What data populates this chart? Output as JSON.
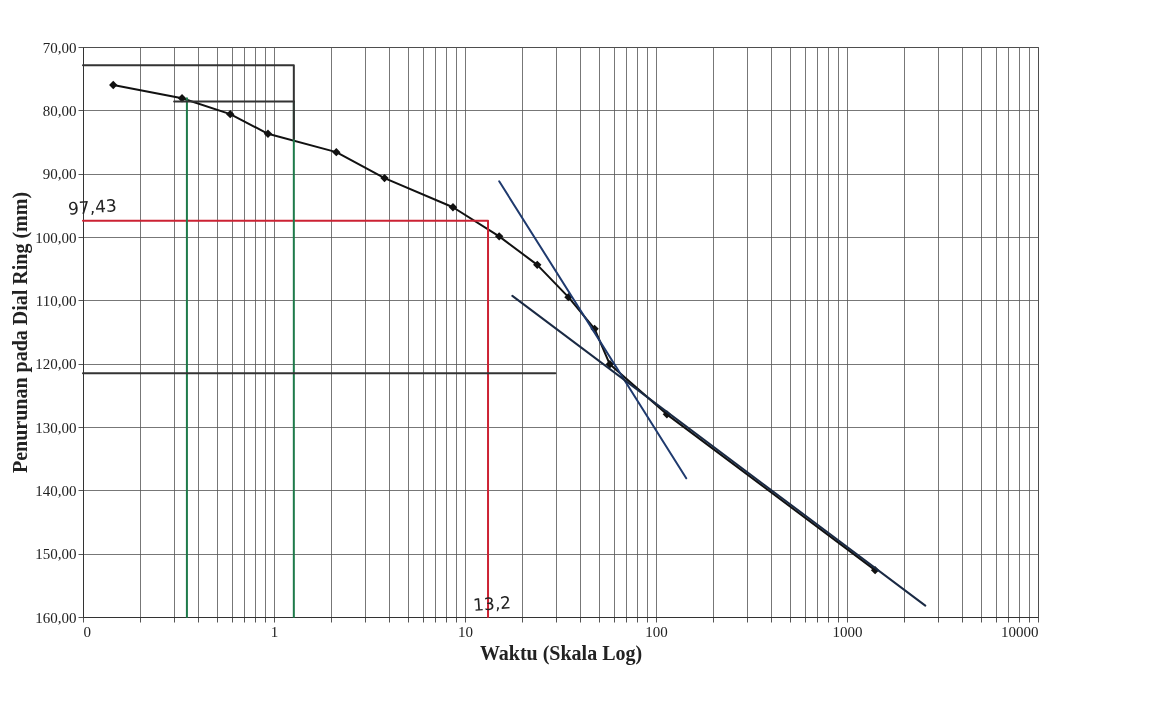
{
  "chart_data": {
    "type": "line",
    "xlabel": "Waktu (Skala Log)",
    "ylabel": "Penurunan pada Dial Ring (mm)",
    "log": "x",
    "grid": true,
    "marker": "diamond",
    "line_style": "solid",
    "xlim": [
      0.1,
      10000
    ],
    "ylim": [
      160,
      70
    ],
    "xticks": [
      {
        "value": 0.1,
        "label": "0"
      },
      {
        "value": 0.2,
        "label": null
      },
      {
        "value": 0.3,
        "label": null
      },
      {
        "value": 0.4,
        "label": null
      },
      {
        "value": 0.5,
        "label": null
      },
      {
        "value": 0.6,
        "label": null
      },
      {
        "value": 0.7,
        "label": null
      },
      {
        "value": 0.8,
        "label": null
      },
      {
        "value": 0.9,
        "label": null
      },
      1,
      {
        "value": 2,
        "label": null
      },
      {
        "value": 3,
        "label": null
      },
      {
        "value": 4,
        "label": null
      },
      {
        "value": 5,
        "label": null
      },
      {
        "value": 6,
        "label": null
      },
      {
        "value": 7,
        "label": null
      },
      {
        "value": 8,
        "label": null
      },
      {
        "value": 9,
        "label": null
      },
      10,
      {
        "value": 20,
        "label": null
      },
      {
        "value": 30,
        "label": null
      },
      {
        "value": 40,
        "label": null
      },
      {
        "value": 50,
        "label": null
      },
      {
        "value": 60,
        "label": null
      },
      {
        "value": 70,
        "label": null
      },
      {
        "value": 80,
        "label": null
      },
      {
        "value": 90,
        "label": null
      },
      100,
      {
        "value": 200,
        "label": null
      },
      {
        "value": 300,
        "label": null
      },
      {
        "value": 400,
        "label": null
      },
      {
        "value": 500,
        "label": null
      },
      {
        "value": 600,
        "label": null
      },
      {
        "value": 700,
        "label": null
      },
      {
        "value": 800,
        "label": null
      },
      {
        "value": 900,
        "label": null
      },
      1000,
      {
        "value": 2000,
        "label": null
      },
      {
        "value": 3000,
        "label": null
      },
      {
        "value": 4000,
        "label": null
      },
      {
        "value": 5000,
        "label": null
      },
      {
        "value": 6000,
        "label": null
      },
      {
        "value": 7000,
        "label": null
      },
      {
        "value": 8000,
        "label": null
      },
      {
        "value": 9000,
        "label": null
      },
      10000
    ],
    "yticks": [
      {
        "value": 70,
        "label": "70,00"
      },
      {
        "value": 80,
        "label": "80,00"
      },
      {
        "value": 90,
        "label": "90,00"
      },
      {
        "value": 100,
        "label": "100,00"
      },
      {
        "value": 110,
        "label": "110,00"
      },
      {
        "value": 120,
        "label": "120,00"
      },
      {
        "value": 130,
        "label": "130,00"
      },
      {
        "value": 140,
        "label": "140,00"
      },
      {
        "value": 150,
        "label": "150,00"
      },
      {
        "value": 160,
        "label": "160,00"
      }
    ],
    "series": [
      {
        "color": "#111111",
        "x": [
          0.144,
          0.33,
          0.59,
          0.93,
          2.12,
          3.79,
          8.65,
          15.1,
          23.9,
          34.8,
          47.7,
          57.3,
          114,
          1403
        ],
        "values": [
          76.0,
          78.1,
          80.6,
          83.7,
          86.6,
          90.7,
          95.3,
          99.9,
          104.4,
          109.5,
          114.5,
          120.1,
          128.0,
          152.6
        ]
      },
      {
        "type": "line",
        "color": "#1f3a6e",
        "marker": "none",
        "x": [
          15.1,
          144
        ],
        "values": [
          91.2,
          138.1
        ]
      },
      {
        "type": "line",
        "color": "#1a2a44",
        "marker": "none",
        "x": [
          17.7,
          2570
        ],
        "values": [
          109.3,
          158.2
        ]
      },
      {
        "type": "line",
        "color": "#cc2233",
        "marker": "none",
        "x": [
          0.1,
          13.2,
          13.2
        ],
        "values": [
          97.43,
          97.43,
          160
        ]
      },
      {
        "type": "line",
        "color": "#1e7a4a",
        "marker": "none",
        "x": [
          0.35,
          0.35
        ],
        "values": [
          78.1,
          160
        ]
      },
      {
        "type": "line",
        "color": "#1e7a4a",
        "marker": "none",
        "x": [
          1.27,
          1.27
        ],
        "values": [
          78.6,
          160
        ]
      },
      {
        "type": "line",
        "color": "#333333",
        "marker": "none",
        "x": [
          0.1,
          1.27,
          1.27
        ],
        "values": [
          72.9,
          72.9,
          84.5
        ]
      },
      {
        "type": "line",
        "color": "#333333",
        "marker": "none",
        "x": [
          0.3,
          1.27
        ],
        "values": [
          78.6,
          78.6
        ]
      },
      {
        "type": "line",
        "color": "#333333",
        "marker": "none",
        "x": [
          0.1,
          29.7
        ],
        "values": [
          121.5,
          121.5
        ]
      }
    ],
    "annotations": [
      {
        "text": "97,43",
        "x": 0.1,
        "y": 97.43
      },
      {
        "text": "13,2",
        "x": 13.2,
        "y": 160
      }
    ]
  }
}
